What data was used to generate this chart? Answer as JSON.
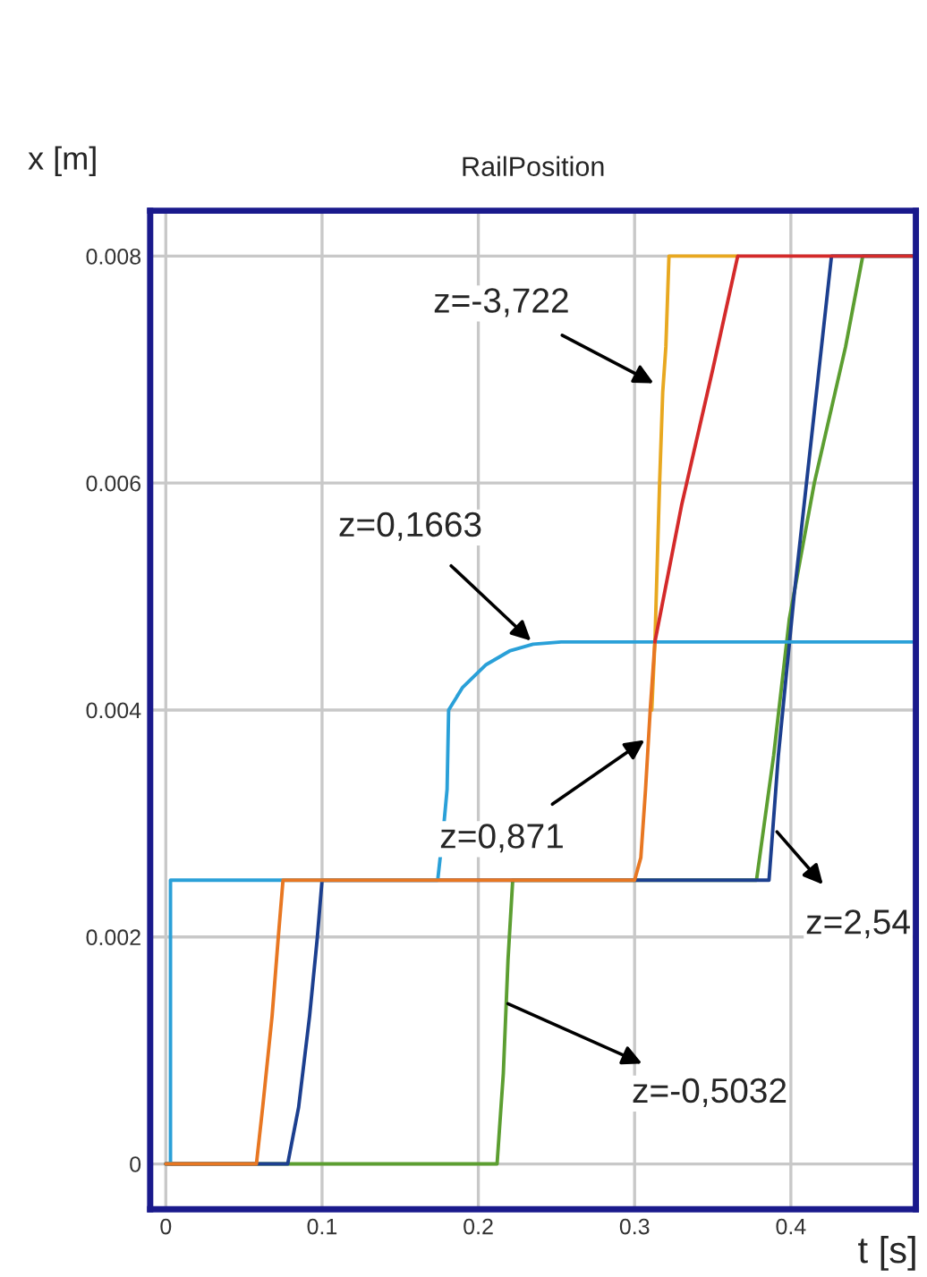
{
  "chart_data": {
    "type": "line",
    "title": "RailPosition",
    "xlabel": "t [s]",
    "ylabel": "x [m]",
    "xlim": [
      -0.01,
      0.48
    ],
    "ylim": [
      -0.0004,
      0.0084
    ],
    "xticks": [
      0,
      0.1,
      0.2,
      0.3,
      0.4
    ],
    "yticks": [
      0,
      0.002,
      0.004,
      0.006,
      0.008
    ],
    "grid": true,
    "line_style": "solid",
    "marker": "none",
    "series": [
      {
        "color": "#5c9e31",
        "x": [
          0,
          0.212,
          0.216,
          0.219,
          0.222,
          0.378,
          0.389,
          0.399,
          0.415,
          0.435,
          0.446,
          0.48
        ],
        "values": [
          0,
          0,
          0.0008,
          0.0018,
          0.0025,
          0.0025,
          0.0036,
          0.0048,
          0.006,
          0.0072,
          0.008,
          0.008
        ]
      },
      {
        "color": "#1c3f8f",
        "x": [
          0,
          0.078,
          0.085,
          0.092,
          0.097,
          0.1,
          0.386,
          0.392,
          0.402,
          0.414,
          0.426,
          0.48
        ],
        "values": [
          0,
          0,
          0.0005,
          0.0013,
          0.002,
          0.0025,
          0.0025,
          0.0036,
          0.005,
          0.0065,
          0.008,
          0.008
        ]
      },
      {
        "color": "#2aa0d8",
        "x": [
          0,
          0.003,
          0.003,
          0.174,
          0.178,
          0.18,
          0.181,
          0.19,
          0.205,
          0.22,
          0.235,
          0.253,
          0.48
        ],
        "values": [
          0,
          0,
          0.0025,
          0.0025,
          0.003,
          0.0033,
          0.004,
          0.0042,
          0.0044,
          0.00452,
          0.00458,
          0.0046,
          0.0046
        ]
      },
      {
        "color": "#e8a820",
        "x": [
          0.311,
          0.313,
          0.316,
          0.318,
          0.32,
          0.322,
          0.366
        ],
        "values": [
          0.004,
          0.0046,
          0.006,
          0.0068,
          0.0072,
          0.008,
          0.008
        ]
      },
      {
        "color": "#e87722",
        "x": [
          0,
          0.058,
          0.062,
          0.068,
          0.072,
          0.075,
          0.3,
          0.304,
          0.307,
          0.31,
          0.313
        ],
        "values": [
          0,
          0,
          0.0005,
          0.0013,
          0.002,
          0.0025,
          0.0025,
          0.0027,
          0.0033,
          0.004,
          0.0046
        ]
      },
      {
        "color": "#d42a2a",
        "x": [
          0.313,
          0.33,
          0.35,
          0.366,
          0.48
        ],
        "values": [
          0.0046,
          0.0058,
          0.007,
          0.008,
          0.008
        ]
      }
    ],
    "annotations": [
      {
        "text": "z=-3,722",
        "x": 0.315,
        "y": 0.00686
      },
      {
        "text": "z=0,1663",
        "x": 0.236,
        "y": 0.00458
      },
      {
        "text": "z=0,871",
        "x": 0.309,
        "y": 0.00376
      },
      {
        "text": "z=2,54",
        "x": 0.389,
        "y": 0.00296
      },
      {
        "text": "z=-0,5032",
        "x": 0.216,
        "y": 0.00143
      }
    ]
  }
}
